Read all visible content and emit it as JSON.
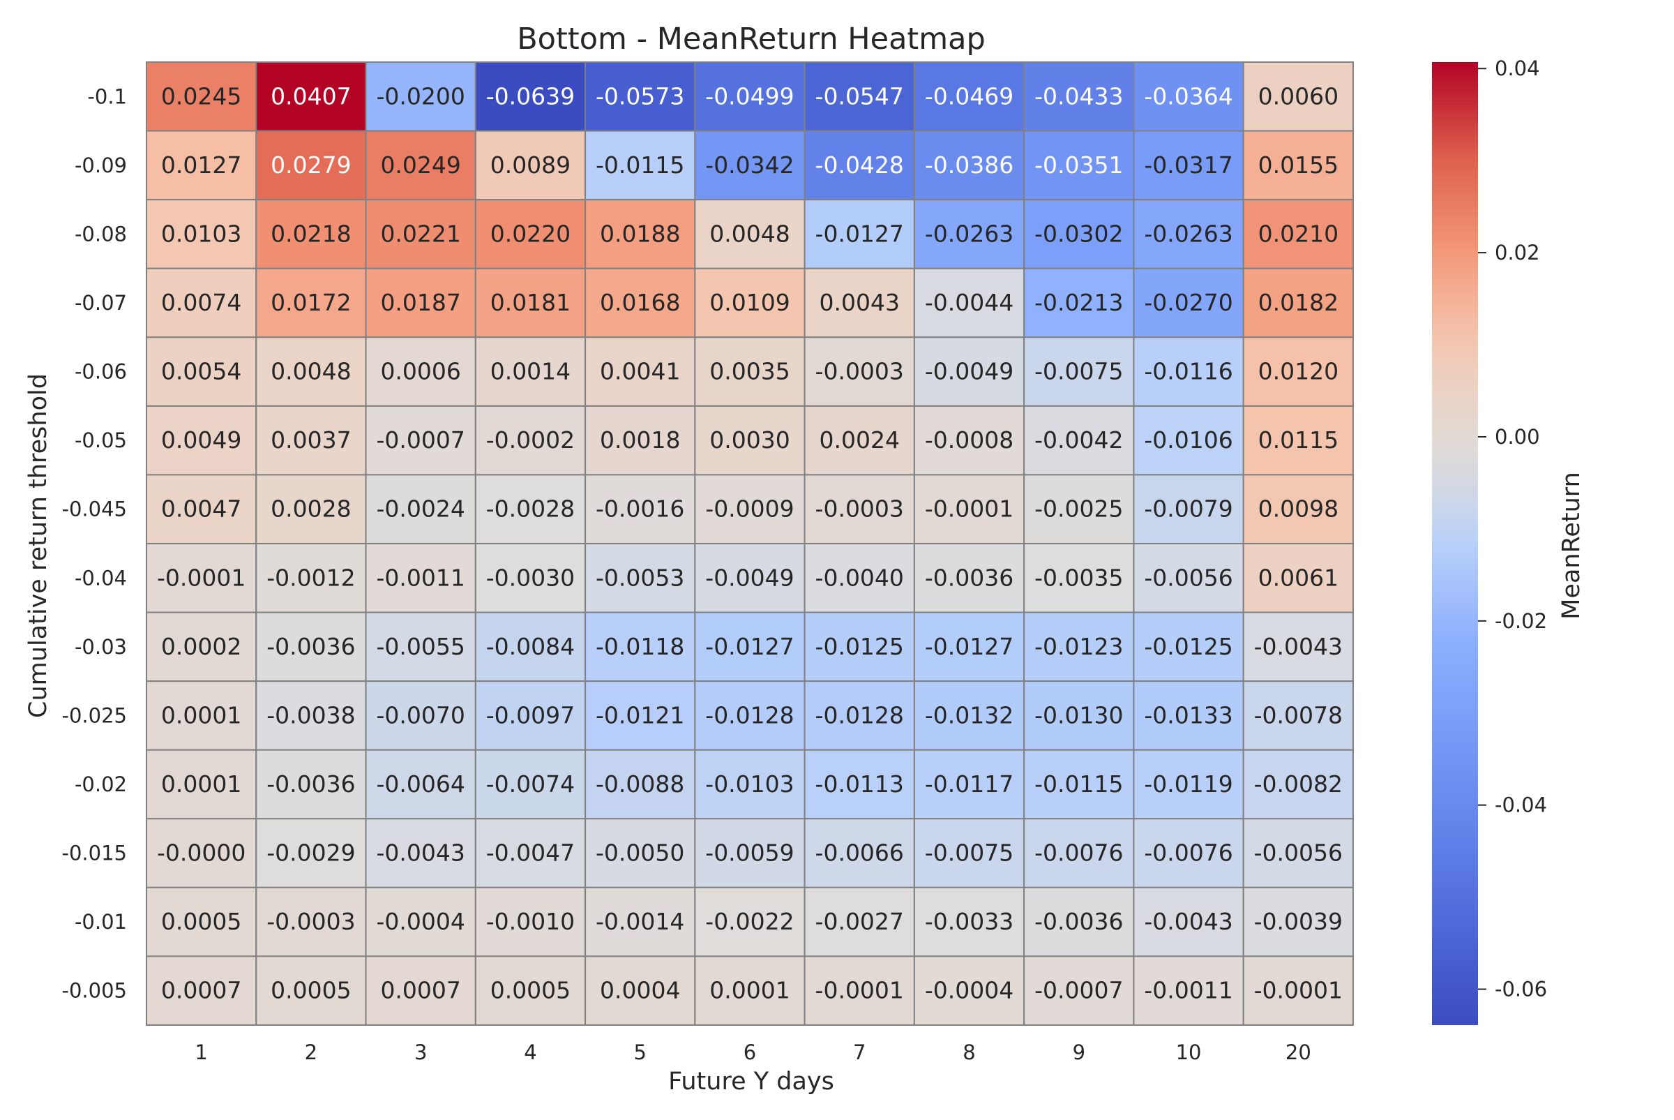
{
  "chart_data": {
    "type": "heatmap",
    "title": "Bottom - MeanReturn Heatmap",
    "xlabel": "Future Y days",
    "ylabel": "Cumulative return threshold",
    "colorbar_label": "MeanReturn",
    "colormap": "coolwarm",
    "vmin": -0.0639,
    "vmax": 0.0407,
    "colorbar_ticks": [
      "0.04",
      "0.02",
      "0.00",
      "-0.02",
      "-0.04",
      "-0.06"
    ],
    "x_categories": [
      "1",
      "2",
      "3",
      "4",
      "5",
      "6",
      "7",
      "8",
      "9",
      "10",
      "20"
    ],
    "y_categories": [
      "-0.1",
      "-0.09",
      "-0.08",
      "-0.07",
      "-0.06",
      "-0.05",
      "-0.045",
      "-0.04",
      "-0.03",
      "-0.025",
      "-0.02",
      "-0.015",
      "-0.01",
      "-0.005"
    ],
    "cell_labels": [
      [
        "0.0245",
        "0.0407",
        "-0.0200",
        "-0.0639",
        "-0.0573",
        "-0.0499",
        "-0.0547",
        "-0.0469",
        "-0.0433",
        "-0.0364",
        "0.0060"
      ],
      [
        "0.0127",
        "0.0279",
        "0.0249",
        "0.0089",
        "-0.0115",
        "-0.0342",
        "-0.0428",
        "-0.0386",
        "-0.0351",
        "-0.0317",
        "0.0155"
      ],
      [
        "0.0103",
        "0.0218",
        "0.0221",
        "0.0220",
        "0.0188",
        "0.0048",
        "-0.0127",
        "-0.0263",
        "-0.0302",
        "-0.0263",
        "0.0210"
      ],
      [
        "0.0074",
        "0.0172",
        "0.0187",
        "0.0181",
        "0.0168",
        "0.0109",
        "0.0043",
        "-0.0044",
        "-0.0213",
        "-0.0270",
        "0.0182"
      ],
      [
        "0.0054",
        "0.0048",
        "0.0006",
        "0.0014",
        "0.0041",
        "0.0035",
        "-0.0003",
        "-0.0049",
        "-0.0075",
        "-0.0116",
        "0.0120"
      ],
      [
        "0.0049",
        "0.0037",
        "-0.0007",
        "-0.0002",
        "0.0018",
        "0.0030",
        "0.0024",
        "-0.0008",
        "-0.0042",
        "-0.0106",
        "0.0115"
      ],
      [
        "0.0047",
        "0.0028",
        "-0.0024",
        "-0.0028",
        "-0.0016",
        "-0.0009",
        "-0.0003",
        "-0.0001",
        "-0.0025",
        "-0.0079",
        "0.0098"
      ],
      [
        "-0.0001",
        "-0.0012",
        "-0.0011",
        "-0.0030",
        "-0.0053",
        "-0.0049",
        "-0.0040",
        "-0.0036",
        "-0.0035",
        "-0.0056",
        "0.0061"
      ],
      [
        "0.0002",
        "-0.0036",
        "-0.0055",
        "-0.0084",
        "-0.0118",
        "-0.0127",
        "-0.0125",
        "-0.0127",
        "-0.0123",
        "-0.0125",
        "-0.0043"
      ],
      [
        "0.0001",
        "-0.0038",
        "-0.0070",
        "-0.0097",
        "-0.0121",
        "-0.0128",
        "-0.0128",
        "-0.0132",
        "-0.0130",
        "-0.0133",
        "-0.0078"
      ],
      [
        "0.0001",
        "-0.0036",
        "-0.0064",
        "-0.0074",
        "-0.0088",
        "-0.0103",
        "-0.0113",
        "-0.0117",
        "-0.0115",
        "-0.0119",
        "-0.0082"
      ],
      [
        "-0.0000",
        "-0.0029",
        "-0.0043",
        "-0.0047",
        "-0.0050",
        "-0.0059",
        "-0.0066",
        "-0.0075",
        "-0.0076",
        "-0.0076",
        "-0.0056"
      ],
      [
        "0.0005",
        "-0.0003",
        "-0.0004",
        "-0.0010",
        "-0.0014",
        "-0.0022",
        "-0.0027",
        "-0.0033",
        "-0.0036",
        "-0.0043",
        "-0.0039"
      ],
      [
        "0.0007",
        "0.0005",
        "0.0007",
        "0.0005",
        "0.0004",
        "0.0001",
        "-0.0001",
        "-0.0004",
        "-0.0007",
        "-0.0011",
        "-0.0001"
      ]
    ]
  }
}
